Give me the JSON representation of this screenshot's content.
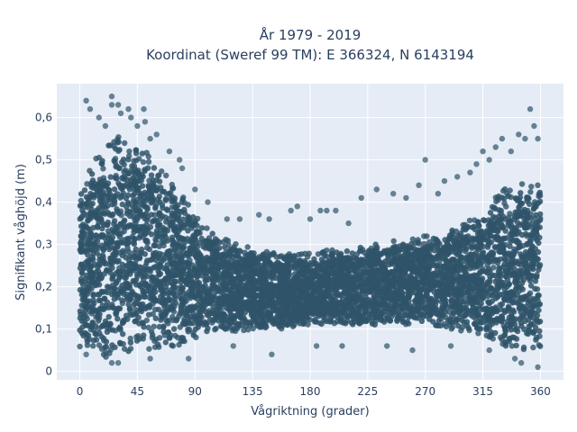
{
  "chart_data": {
    "type": "scatter",
    "title_lines": [
      "År 1979 - 2019",
      "Koordinat (Sweref 99 TM): E 366324, N 6143194"
    ],
    "xlabel": "Vågriktning (grader)",
    "ylabel": "Signifikant våghöjd (m)",
    "xlim": [
      -18,
      378
    ],
    "ylim": [
      -0.02,
      0.68
    ],
    "x_ticks": [
      0,
      45,
      90,
      135,
      180,
      225,
      270,
      315,
      360
    ],
    "x_tick_labels": [
      "0",
      "45",
      "90",
      "135",
      "180",
      "225",
      "270",
      "315",
      "360"
    ],
    "y_ticks": [
      0,
      0.1,
      0.2,
      0.3,
      0.4,
      0.5,
      0.6
    ],
    "y_tick_labels": [
      "0",
      "0,1",
      "0,2",
      "0,3",
      "0,4",
      "0,5",
      "0,6"
    ],
    "grid": true,
    "legend": false,
    "marker_color": "#2f5469",
    "plot_bg": "#e5ecf6",
    "envelope": [
      {
        "x": 0,
        "lower": 0.05,
        "upper": 0.44
      },
      {
        "x": 10,
        "lower": 0.04,
        "upper": 0.5
      },
      {
        "x": 20,
        "lower": 0.03,
        "upper": 0.54
      },
      {
        "x": 30,
        "lower": 0.03,
        "upper": 0.56
      },
      {
        "x": 40,
        "lower": 0.04,
        "upper": 0.55
      },
      {
        "x": 50,
        "lower": 0.04,
        "upper": 0.53
      },
      {
        "x": 60,
        "lower": 0.05,
        "upper": 0.49
      },
      {
        "x": 70,
        "lower": 0.05,
        "upper": 0.46
      },
      {
        "x": 80,
        "lower": 0.06,
        "upper": 0.42
      },
      {
        "x": 90,
        "lower": 0.07,
        "upper": 0.37
      },
      {
        "x": 100,
        "lower": 0.08,
        "upper": 0.34
      },
      {
        "x": 115,
        "lower": 0.09,
        "upper": 0.31
      },
      {
        "x": 135,
        "lower": 0.1,
        "upper": 0.29
      },
      {
        "x": 160,
        "lower": 0.1,
        "upper": 0.28
      },
      {
        "x": 180,
        "lower": 0.11,
        "upper": 0.28
      },
      {
        "x": 200,
        "lower": 0.11,
        "upper": 0.29
      },
      {
        "x": 225,
        "lower": 0.11,
        "upper": 0.3
      },
      {
        "x": 250,
        "lower": 0.11,
        "upper": 0.31
      },
      {
        "x": 270,
        "lower": 0.11,
        "upper": 0.32
      },
      {
        "x": 290,
        "lower": 0.1,
        "upper": 0.34
      },
      {
        "x": 305,
        "lower": 0.09,
        "upper": 0.36
      },
      {
        "x": 320,
        "lower": 0.07,
        "upper": 0.4
      },
      {
        "x": 335,
        "lower": 0.05,
        "upper": 0.44
      },
      {
        "x": 350,
        "lower": 0.04,
        "upper": 0.45
      },
      {
        "x": 360,
        "lower": 0.04,
        "upper": 0.44
      }
    ],
    "outliers": [
      {
        "x": 5,
        "y": 0.64
      },
      {
        "x": 8,
        "y": 0.62
      },
      {
        "x": 15,
        "y": 0.6
      },
      {
        "x": 20,
        "y": 0.58
      },
      {
        "x": 25,
        "y": 0.63
      },
      {
        "x": 25,
        "y": 0.65
      },
      {
        "x": 30,
        "y": 0.63
      },
      {
        "x": 32,
        "y": 0.61
      },
      {
        "x": 38,
        "y": 0.62
      },
      {
        "x": 40,
        "y": 0.6
      },
      {
        "x": 45,
        "y": 0.58
      },
      {
        "x": 50,
        "y": 0.62
      },
      {
        "x": 51,
        "y": 0.59
      },
      {
        "x": 55,
        "y": 0.55
      },
      {
        "x": 60,
        "y": 0.56
      },
      {
        "x": 70,
        "y": 0.52
      },
      {
        "x": 78,
        "y": 0.5
      },
      {
        "x": 80,
        "y": 0.48
      },
      {
        "x": 90,
        "y": 0.43
      },
      {
        "x": 100,
        "y": 0.4
      },
      {
        "x": 115,
        "y": 0.36
      },
      {
        "x": 125,
        "y": 0.36
      },
      {
        "x": 140,
        "y": 0.37
      },
      {
        "x": 148,
        "y": 0.36
      },
      {
        "x": 165,
        "y": 0.38
      },
      {
        "x": 170,
        "y": 0.39
      },
      {
        "x": 180,
        "y": 0.36
      },
      {
        "x": 188,
        "y": 0.38
      },
      {
        "x": 193,
        "y": 0.38
      },
      {
        "x": 200,
        "y": 0.38
      },
      {
        "x": 210,
        "y": 0.35
      },
      {
        "x": 220,
        "y": 0.41
      },
      {
        "x": 232,
        "y": 0.43
      },
      {
        "x": 245,
        "y": 0.42
      },
      {
        "x": 255,
        "y": 0.41
      },
      {
        "x": 270,
        "y": 0.5
      },
      {
        "x": 265,
        "y": 0.44
      },
      {
        "x": 280,
        "y": 0.42
      },
      {
        "x": 285,
        "y": 0.45
      },
      {
        "x": 295,
        "y": 0.46
      },
      {
        "x": 305,
        "y": 0.47
      },
      {
        "x": 310,
        "y": 0.49
      },
      {
        "x": 315,
        "y": 0.52
      },
      {
        "x": 320,
        "y": 0.5
      },
      {
        "x": 325,
        "y": 0.53
      },
      {
        "x": 330,
        "y": 0.55
      },
      {
        "x": 337,
        "y": 0.52
      },
      {
        "x": 343,
        "y": 0.56
      },
      {
        "x": 348,
        "y": 0.55
      },
      {
        "x": 352,
        "y": 0.62
      },
      {
        "x": 355,
        "y": 0.58
      },
      {
        "x": 358,
        "y": 0.55
      },
      {
        "x": 358,
        "y": 0.01
      },
      {
        "x": 30,
        "y": 0.02
      },
      {
        "x": 25,
        "y": 0.02
      },
      {
        "x": 340,
        "y": 0.03
      },
      {
        "x": 345,
        "y": 0.02
      },
      {
        "x": 5,
        "y": 0.04
      },
      {
        "x": 85,
        "y": 0.03
      },
      {
        "x": 150,
        "y": 0.04
      },
      {
        "x": 205,
        "y": 0.06
      },
      {
        "x": 240,
        "y": 0.06
      },
      {
        "x": 320,
        "y": 0.05
      },
      {
        "x": 55,
        "y": 0.03
      },
      {
        "x": 120,
        "y": 0.06
      },
      {
        "x": 185,
        "y": 0.06
      },
      {
        "x": 260,
        "y": 0.05
      },
      {
        "x": 290,
        "y": 0.06
      }
    ]
  }
}
